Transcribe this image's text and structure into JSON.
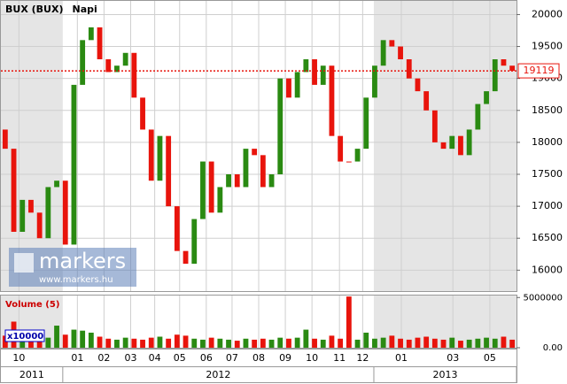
{
  "chart_data": {
    "type": "candlestick",
    "title": "BUX (BUX)",
    "subtitle": "Napi",
    "x": [
      0.5,
      1.5,
      2.5,
      3.5,
      4.5,
      5.5,
      6.5,
      7.5,
      8.5,
      9.5,
      10.5,
      11.5,
      12.5,
      13.5,
      14.5,
      15.5,
      16.5,
      17.5,
      18.5,
      19.5,
      20.5,
      21.5,
      22.5,
      23.5,
      24.5,
      25.5,
      26.5,
      27.5,
      28.5,
      29.5,
      30.5,
      31.5,
      32.5,
      33.5,
      34.5,
      35.5,
      36.5,
      37.5,
      38.5,
      39.5,
      40.5,
      41.5,
      42.5,
      43.5,
      44.5,
      45.5,
      46.5,
      47.5,
      48.5,
      49.5,
      50.5,
      51.5,
      52.5,
      53.5,
      54.5,
      55.5,
      56.5,
      57.5,
      58.5,
      59.5
    ],
    "open": [
      18200,
      17900,
      16600,
      17100,
      16900,
      16500,
      17300,
      17400,
      16400,
      18900,
      19600,
      19800,
      19300,
      19100,
      19200,
      19400,
      18700,
      18200,
      17400,
      18100,
      17000,
      16300,
      16100,
      16800,
      17700,
      16900,
      17300,
      17500,
      17300,
      17900,
      17800,
      17300,
      17500,
      19000,
      18700,
      19100,
      19300,
      18900,
      19200,
      18100,
      17700,
      17700,
      17900,
      18700,
      19200,
      19600,
      19500,
      19300,
      19000,
      18800,
      18500,
      18000,
      17900,
      18100,
      17800,
      18200,
      18600,
      18800,
      19300,
      19200
    ],
    "close": [
      17900,
      16600,
      17100,
      16900,
      16500,
      17300,
      17400,
      16400,
      18900,
      19600,
      19800,
      19300,
      19100,
      19200,
      19400,
      18700,
      18200,
      17400,
      18100,
      17000,
      16300,
      16100,
      16800,
      17700,
      16900,
      17300,
      17500,
      17300,
      17900,
      17800,
      17300,
      17500,
      19000,
      18700,
      19100,
      19300,
      18900,
      19200,
      18100,
      17700,
      17700,
      17900,
      18700,
      19200,
      19600,
      19500,
      19300,
      19000,
      18800,
      18500,
      18000,
      17900,
      18100,
      17800,
      18200,
      18600,
      18800,
      19300,
      19200,
      19119
    ],
    "up_color": "#2a8a12",
    "down_color": "#e8140c",
    "xlim": [
      0,
      60
    ],
    "xticks": [
      {
        "value": 2.1,
        "label": "10"
      },
      {
        "value": 8.9,
        "label": "01"
      },
      {
        "value": 12.0,
        "label": "02"
      },
      {
        "value": 15.1,
        "label": "03"
      },
      {
        "value": 17.9,
        "label": "04"
      },
      {
        "value": 20.8,
        "label": "05"
      },
      {
        "value": 23.9,
        "label": "06"
      },
      {
        "value": 26.9,
        "label": "07"
      },
      {
        "value": 30.0,
        "label": "08"
      },
      {
        "value": 33.1,
        "label": "09"
      },
      {
        "value": 36.2,
        "label": "10"
      },
      {
        "value": 39.4,
        "label": "11"
      },
      {
        "value": 42.1,
        "label": "12"
      },
      {
        "value": 46.6,
        "label": "01"
      },
      {
        "value": 52.6,
        "label": "03"
      },
      {
        "value": 56.9,
        "label": "05"
      }
    ],
    "years": [
      {
        "label": "2011",
        "start": 0,
        "end": 7.2
      },
      {
        "label": "2012",
        "start": 7.2,
        "end": 43.4
      },
      {
        "label": "2013",
        "start": 43.4,
        "end": 60
      }
    ],
    "ylim": [
      15700,
      20200
    ],
    "yticks": [
      16000,
      16500,
      17000,
      17500,
      18000,
      18500,
      19000,
      19500,
      20000
    ],
    "grid": true,
    "last_value": 19119,
    "last_color": "#e8140c",
    "volume": {
      "title": "Volume (5)",
      "multiplier": "x10000",
      "color_up": "#2a8a12",
      "color_down": "#e8140c",
      "values": [
        1200000,
        2600000,
        900000,
        800000,
        1100000,
        1000000,
        2200000,
        1300000,
        1800000,
        1700000,
        1500000,
        1100000,
        900000,
        800000,
        1000000,
        900000,
        800000,
        1000000,
        1100000,
        900000,
        1300000,
        1200000,
        900000,
        800000,
        1000000,
        900000,
        800000,
        700000,
        900000,
        800000,
        900000,
        800000,
        1000000,
        900000,
        1000000,
        1800000,
        900000,
        800000,
        1200000,
        900000,
        5100000,
        800000,
        1500000,
        900000,
        1000000,
        1200000,
        900000,
        800000,
        1000000,
        1100000,
        900000,
        800000,
        1000000,
        700000,
        800000,
        900000,
        1000000,
        900000,
        1100000,
        800000
      ],
      "ylim": [
        0,
        5200000
      ],
      "yticks": [
        {
          "value": 0,
          "label": "0.00"
        },
        5000000
      ]
    },
    "watermark": "markers",
    "watermark_url": "www.markers.hu"
  }
}
